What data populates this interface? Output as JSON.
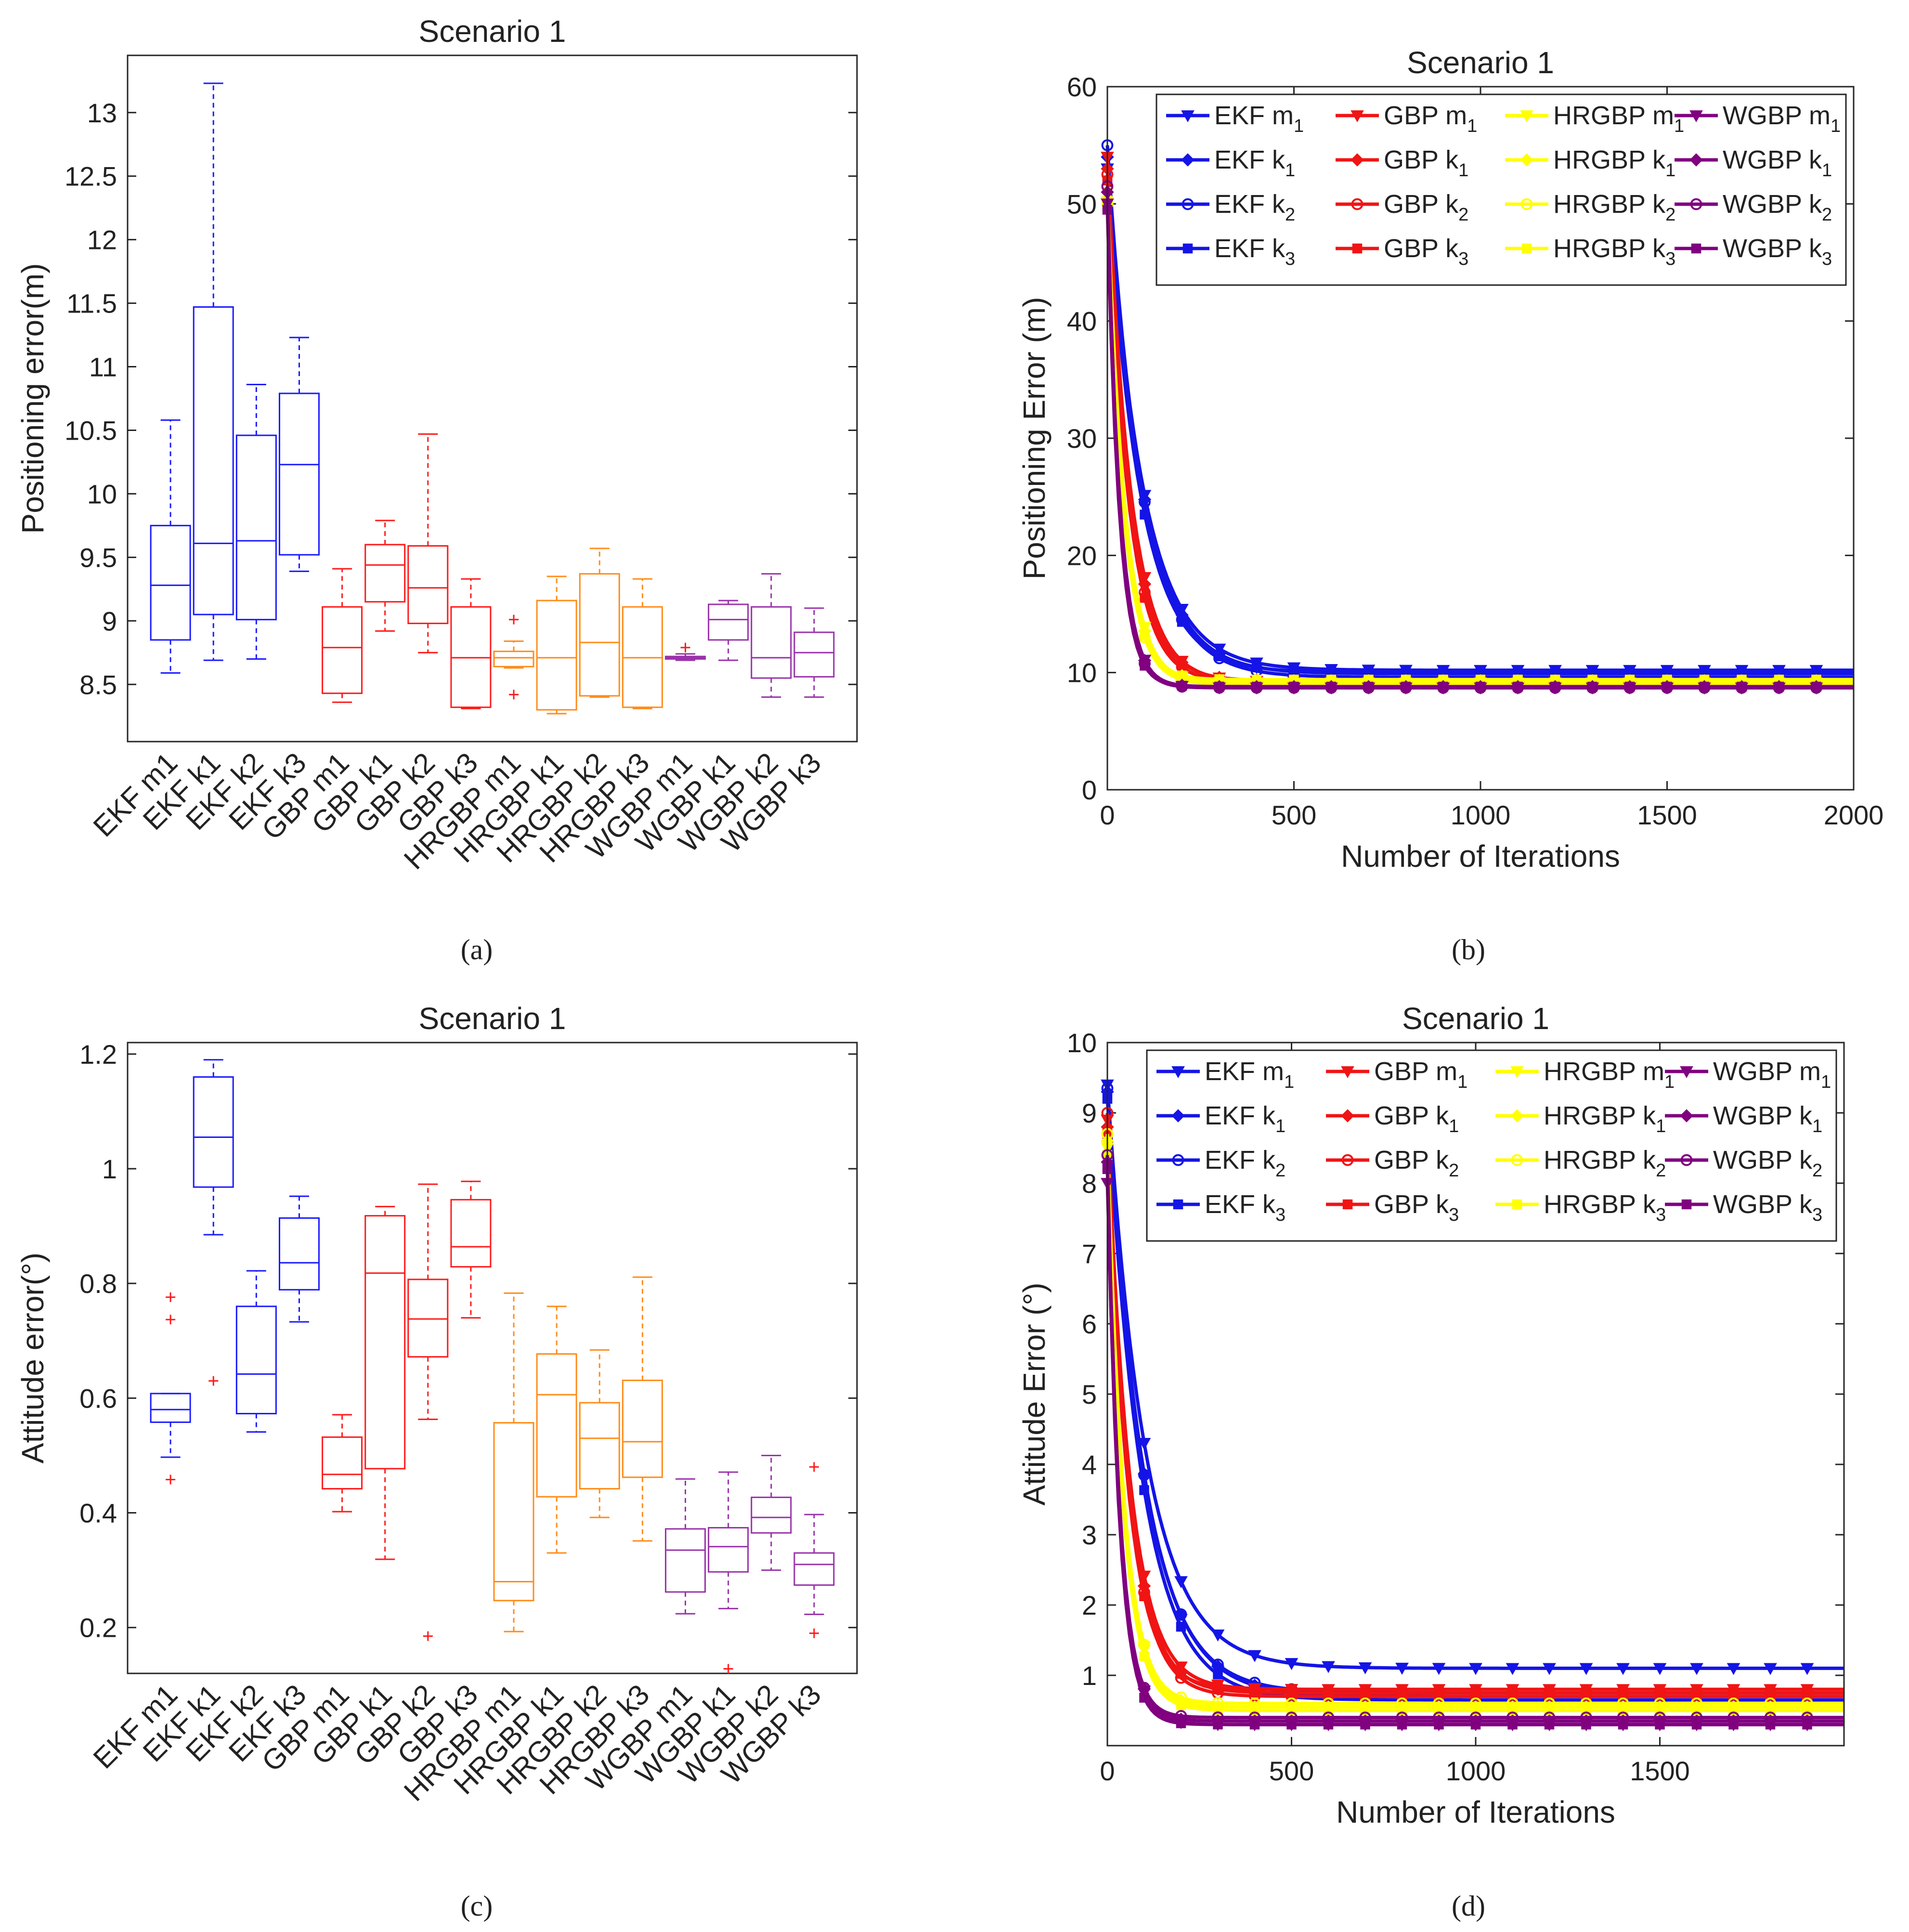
{
  "captions": [
    "(a)",
    "(b)",
    "(c)",
    "(d)"
  ],
  "colors": {
    "EKF": "#1a1aff",
    "GBP": "#ff1a1a",
    "HRGBP": "#ff8c1a",
    "WGBP": "#9933aa",
    "line_EKF": "#1414e6",
    "line_GBP": "#f01414",
    "line_HRGBP": "#ffff00",
    "line_WGBP": "#800080"
  },
  "chart_data": [
    {
      "type": "box",
      "title": "Scenario 1",
      "xlabel": "",
      "ylabel": "Positioning error(m)",
      "ylim": [
        8.05,
        13.45
      ],
      "yticks": [
        8.5,
        9,
        9.5,
        10,
        10.5,
        11,
        11.5,
        12,
        12.5,
        13
      ],
      "ytick_labels": [
        "8.5",
        "9",
        "9.5",
        "10",
        "10.5",
        "11",
        "11.5",
        "12",
        "12.5",
        "13"
      ],
      "categories": [
        "EKF m1",
        "EKF k1",
        "EKF k2",
        "EKF k3",
        "GBP m1",
        "GBP k1",
        "GBP k2",
        "GBP k3",
        "HRGBP m1",
        "HRGBP k1",
        "HRGBP k2",
        "HRGBP k3",
        "WGBP m1",
        "WGBP k1",
        "WGBP k2",
        "WGBP k3"
      ],
      "groups": [
        "EKF",
        "EKF",
        "EKF",
        "EKF",
        "GBP",
        "GBP",
        "GBP",
        "GBP",
        "HRGBP",
        "HRGBP",
        "HRGBP",
        "HRGBP",
        "WGBP",
        "WGBP",
        "WGBP",
        "WGBP"
      ],
      "boxes": [
        {
          "min": 8.59,
          "q1": 8.85,
          "median": 9.28,
          "q3": 9.75,
          "max": 10.58,
          "outliers": []
        },
        {
          "min": 8.69,
          "q1": 9.05,
          "median": 9.61,
          "q3": 11.47,
          "max": 13.23,
          "outliers": []
        },
        {
          "min": 8.7,
          "q1": 9.01,
          "median": 9.63,
          "q3": 10.46,
          "max": 10.86,
          "outliers": []
        },
        {
          "min": 9.39,
          "q1": 9.52,
          "median": 10.23,
          "q3": 10.79,
          "max": 11.23,
          "outliers": []
        },
        {
          "min": 8.36,
          "q1": 8.43,
          "median": 8.79,
          "q3": 9.11,
          "max": 9.41,
          "outliers": []
        },
        {
          "min": 8.92,
          "q1": 9.15,
          "median": 9.44,
          "q3": 9.6,
          "max": 9.79,
          "outliers": []
        },
        {
          "min": 8.75,
          "q1": 8.98,
          "median": 9.26,
          "q3": 9.59,
          "max": 10.47,
          "outliers": []
        },
        {
          "min": 8.31,
          "q1": 8.32,
          "median": 8.71,
          "q3": 9.11,
          "max": 9.33,
          "outliers": []
        },
        {
          "min": 8.63,
          "q1": 8.64,
          "median": 8.71,
          "q3": 8.76,
          "max": 8.84,
          "outliers": [
            9.01,
            8.42
          ]
        },
        {
          "min": 8.27,
          "q1": 8.3,
          "median": 8.71,
          "q3": 9.16,
          "max": 9.35,
          "outliers": []
        },
        {
          "min": 8.4,
          "q1": 8.41,
          "median": 8.83,
          "q3": 9.37,
          "max": 9.57,
          "outliers": []
        },
        {
          "min": 8.31,
          "q1": 8.32,
          "median": 8.71,
          "q3": 9.11,
          "max": 9.33,
          "outliers": []
        },
        {
          "min": 8.69,
          "q1": 8.7,
          "median": 8.71,
          "q3": 8.72,
          "max": 8.74,
          "outliers": [
            8.79
          ]
        },
        {
          "min": 8.69,
          "q1": 8.85,
          "median": 9.01,
          "q3": 9.13,
          "max": 9.16,
          "outliers": []
        },
        {
          "min": 8.4,
          "q1": 8.55,
          "median": 8.71,
          "q3": 9.11,
          "max": 9.37,
          "outliers": []
        },
        {
          "min": 8.4,
          "q1": 8.56,
          "median": 8.75,
          "q3": 8.91,
          "max": 9.1,
          "outliers": []
        }
      ]
    },
    {
      "type": "line",
      "title": "Scenario 1",
      "xlabel": "Number of Iterations",
      "ylabel": "Positioning Error (m)",
      "xlim": [
        0,
        2000
      ],
      "ylim": [
        0,
        60
      ],
      "xticks": [
        0,
        500,
        1000,
        1500,
        2000
      ],
      "xtick_labels": [
        "0",
        "500",
        "1000",
        "1500",
        "2000"
      ],
      "yticks": [
        0,
        10,
        20,
        30,
        40,
        50,
        60
      ],
      "ytick_labels": [
        "0",
        "10",
        "20",
        "30",
        "40",
        "50",
        "60"
      ],
      "decay_tau": [
        95,
        92,
        90,
        88,
        62,
        60,
        58,
        56,
        46,
        44,
        43,
        42,
        35,
        34,
        33,
        32
      ],
      "marker_step": 100,
      "series": [
        {
          "name": "EKF m1",
          "legend_main": "EKF m",
          "legend_sub": "1",
          "group": "EKF",
          "marker": "triangle-down",
          "start": 53.0,
          "final": 10.2
        },
        {
          "name": "EKF k1",
          "legend_main": "EKF k",
          "legend_sub": "1",
          "group": "EKF",
          "marker": "diamond",
          "start": 54.0,
          "final": 9.9
        },
        {
          "name": "EKF k2",
          "legend_main": "EKF k",
          "legend_sub": "2",
          "group": "EKF",
          "marker": "circle",
          "start": 55.0,
          "final": 9.6
        },
        {
          "name": "EKF k3",
          "legend_main": "EKF k",
          "legend_sub": "3",
          "group": "EKF",
          "marker": "square",
          "start": 52.0,
          "final": 10.0
        },
        {
          "name": "GBP m1",
          "legend_main": "GBP m",
          "legend_sub": "1",
          "group": "GBP",
          "marker": "triangle-down",
          "start": 54.0,
          "final": 9.2
        },
        {
          "name": "GBP k1",
          "legend_main": "GBP k",
          "legend_sub": "1",
          "group": "GBP",
          "marker": "diamond",
          "start": 53.0,
          "final": 9.3
        },
        {
          "name": "GBP k2",
          "legend_main": "GBP k",
          "legend_sub": "2",
          "group": "GBP",
          "marker": "circle",
          "start": 52.5,
          "final": 9.1
        },
        {
          "name": "GBP k3",
          "legend_main": "GBP k",
          "legend_sub": "3",
          "group": "GBP",
          "marker": "square",
          "start": 52.0,
          "final": 9.2
        },
        {
          "name": "HRGBP m1",
          "legend_main": "HRGBP m",
          "legend_sub": "1",
          "group": "HRGBP",
          "marker": "triangle-down",
          "start": 51.0,
          "final": 9.1
        },
        {
          "name": "HRGBP k1",
          "legend_main": "HRGBP k",
          "legend_sub": "1",
          "group": "HRGBP",
          "marker": "diamond",
          "start": 50.5,
          "final": 9.3
        },
        {
          "name": "HRGBP k2",
          "legend_main": "HRGBP k",
          "legend_sub": "2",
          "group": "HRGBP",
          "marker": "circle",
          "start": 50.0,
          "final": 9.0
        },
        {
          "name": "HRGBP k3",
          "legend_main": "HRGBP k",
          "legend_sub": "3",
          "group": "HRGBP",
          "marker": "square",
          "start": 50.0,
          "final": 9.4
        },
        {
          "name": "WGBP m1",
          "legend_main": "WGBP m",
          "legend_sub": "1",
          "group": "WGBP",
          "marker": "triangle-down",
          "start": 50.0,
          "final": 8.7
        },
        {
          "name": "WGBP k1",
          "legend_main": "WGBP k",
          "legend_sub": "1",
          "group": "WGBP",
          "marker": "diamond",
          "start": 51.0,
          "final": 8.8
        },
        {
          "name": "WGBP k2",
          "legend_main": "WGBP k",
          "legend_sub": "2",
          "group": "WGBP",
          "marker": "circle",
          "start": 51.5,
          "final": 8.7
        },
        {
          "name": "WGBP k3",
          "legend_main": "WGBP k",
          "legend_sub": "3",
          "group": "WGBP",
          "marker": "square",
          "start": 49.5,
          "final": 8.8
        }
      ]
    },
    {
      "type": "box",
      "title": "Scenario 1",
      "xlabel": "",
      "ylabel": "Attitude error(°)",
      "ylim": [
        0.12,
        1.22
      ],
      "yticks": [
        0.2,
        0.4,
        0.6,
        0.8,
        1.0,
        1.2
      ],
      "ytick_labels": [
        "0.2",
        "0.4",
        "0.6",
        "0.8",
        "1",
        "1.2"
      ],
      "categories": [
        "EKF m1",
        "EKF k1",
        "EKF k2",
        "EKF k3",
        "GBP m1",
        "GBP k1",
        "GBP k2",
        "GBP k3",
        "HRGBP m1",
        "HRGBP k1",
        "HRGBP k2",
        "HRGBP k3",
        "WGBP m1",
        "WGBP k1",
        "WGBP k2",
        "WGBP k3"
      ],
      "groups": [
        "EKF",
        "EKF",
        "EKF",
        "EKF",
        "GBP",
        "GBP",
        "GBP",
        "GBP",
        "HRGBP",
        "HRGBP",
        "HRGBP",
        "HRGBP",
        "WGBP",
        "WGBP",
        "WGBP",
        "WGBP"
      ],
      "boxes": [
        {
          "min": 0.497,
          "q1": 0.558,
          "median": 0.58,
          "q3": 0.608,
          "max": 0.608,
          "outliers": [
            0.776,
            0.737,
            0.458
          ]
        },
        {
          "min": 0.885,
          "q1": 0.968,
          "median": 1.055,
          "q3": 1.16,
          "max": 1.19,
          "outliers": [
            0.63
          ]
        },
        {
          "min": 0.541,
          "q1": 0.573,
          "median": 0.642,
          "q3": 0.76,
          "max": 0.822,
          "outliers": []
        },
        {
          "min": 0.733,
          "q1": 0.789,
          "median": 0.836,
          "q3": 0.914,
          "max": 0.952,
          "outliers": []
        },
        {
          "min": 0.402,
          "q1": 0.442,
          "median": 0.467,
          "q3": 0.532,
          "max": 0.571,
          "outliers": []
        },
        {
          "min": 0.319,
          "q1": 0.477,
          "median": 0.818,
          "q3": 0.918,
          "max": 0.934,
          "outliers": []
        },
        {
          "min": 0.563,
          "q1": 0.672,
          "median": 0.738,
          "q3": 0.807,
          "max": 0.973,
          "outliers": [
            0.185
          ]
        },
        {
          "min": 0.74,
          "q1": 0.829,
          "median": 0.864,
          "q3": 0.946,
          "max": 0.978,
          "outliers": []
        },
        {
          "min": 0.193,
          "q1": 0.247,
          "median": 0.28,
          "q3": 0.557,
          "max": 0.783,
          "outliers": []
        },
        {
          "min": 0.33,
          "q1": 0.428,
          "median": 0.606,
          "q3": 0.677,
          "max": 0.76,
          "outliers": []
        },
        {
          "min": 0.392,
          "q1": 0.442,
          "median": 0.53,
          "q3": 0.592,
          "max": 0.684,
          "outliers": []
        },
        {
          "min": 0.351,
          "q1": 0.462,
          "median": 0.524,
          "q3": 0.631,
          "max": 0.811,
          "outliers": []
        },
        {
          "min": 0.224,
          "q1": 0.262,
          "median": 0.335,
          "q3": 0.372,
          "max": 0.459,
          "outliers": []
        },
        {
          "min": 0.233,
          "q1": 0.297,
          "median": 0.341,
          "q3": 0.374,
          "max": 0.471,
          "outliers": [
            0.128
          ]
        },
        {
          "min": 0.3,
          "q1": 0.365,
          "median": 0.392,
          "q3": 0.427,
          "max": 0.5,
          "outliers": []
        },
        {
          "min": 0.223,
          "q1": 0.274,
          "median": 0.31,
          "q3": 0.33,
          "max": 0.397,
          "outliers": [
            0.48,
            0.19
          ]
        }
      ]
    },
    {
      "type": "line",
      "title": "Scenario 1",
      "xlabel": "Number of Iterations",
      "ylabel": "Attitude Error (°)",
      "xlim": [
        0,
        2000
      ],
      "ylim": [
        0,
        10
      ],
      "xticks": [
        0,
        500,
        1000,
        1500
      ],
      "xtick_labels": [
        "0",
        "500",
        "1000",
        "1500"
      ],
      "yticks": [
        1,
        2,
        3,
        4,
        5,
        6,
        7,
        8,
        9,
        10
      ],
      "ytick_labels": [
        "1",
        "2",
        "3",
        "4",
        "5",
        "6",
        "7",
        "8",
        "9",
        "10"
      ],
      "decay_tau": [
        105,
        100,
        98,
        95,
        62,
        60,
        58,
        56,
        46,
        45,
        44,
        43,
        36,
        35,
        34,
        33
      ],
      "marker_step": 100,
      "series": [
        {
          "name": "EKF m1",
          "legend_main": "EKF m",
          "legend_sub": "1",
          "group": "EKF",
          "marker": "triangle-down",
          "start": 9.4,
          "final": 1.1
        },
        {
          "name": "EKF k1",
          "legend_main": "EKF k",
          "legend_sub": "1",
          "group": "EKF",
          "marker": "diamond",
          "start": 9.3,
          "final": 0.7
        },
        {
          "name": "EKF k2",
          "legend_main": "EKF k",
          "legend_sub": "2",
          "group": "EKF",
          "marker": "circle",
          "start": 9.35,
          "final": 0.75
        },
        {
          "name": "EKF k3",
          "legend_main": "EKF k",
          "legend_sub": "3",
          "group": "EKF",
          "marker": "square",
          "start": 9.2,
          "final": 0.65
        },
        {
          "name": "GBP m1",
          "legend_main": "GBP m",
          "legend_sub": "1",
          "group": "GBP",
          "marker": "triangle-down",
          "start": 8.9,
          "final": 0.8
        },
        {
          "name": "GBP k1",
          "legend_main": "GBP k",
          "legend_sub": "1",
          "group": "GBP",
          "marker": "diamond",
          "start": 8.8,
          "final": 0.75
        },
        {
          "name": "GBP k2",
          "legend_main": "GBP k",
          "legend_sub": "2",
          "group": "GBP",
          "marker": "circle",
          "start": 9.0,
          "final": 0.7
        },
        {
          "name": "GBP k3",
          "legend_main": "GBP k",
          "legend_sub": "3",
          "group": "GBP",
          "marker": "square",
          "start": 8.7,
          "final": 0.8
        },
        {
          "name": "HRGBP m1",
          "legend_main": "HRGBP m",
          "legend_sub": "1",
          "group": "HRGBP",
          "marker": "triangle-down",
          "start": 8.5,
          "final": 0.5
        },
        {
          "name": "HRGBP k1",
          "legend_main": "HRGBP k",
          "legend_sub": "1",
          "group": "HRGBP",
          "marker": "diamond",
          "start": 8.6,
          "final": 0.55
        },
        {
          "name": "HRGBP k2",
          "legend_main": "HRGBP k",
          "legend_sub": "2",
          "group": "HRGBP",
          "marker": "circle",
          "start": 8.7,
          "final": 0.6
        },
        {
          "name": "HRGBP k3",
          "legend_main": "HRGBP k",
          "legend_sub": "3",
          "group": "HRGBP",
          "marker": "square",
          "start": 8.4,
          "final": 0.5
        },
        {
          "name": "WGBP m1",
          "legend_main": "WGBP m",
          "legend_sub": "1",
          "group": "WGBP",
          "marker": "triangle-down",
          "start": 8.0,
          "final": 0.3
        },
        {
          "name": "WGBP k1",
          "legend_main": "WGBP k",
          "legend_sub": "1",
          "group": "WGBP",
          "marker": "diamond",
          "start": 8.3,
          "final": 0.35
        },
        {
          "name": "WGBP k2",
          "legend_main": "WGBP k",
          "legend_sub": "2",
          "group": "WGBP",
          "marker": "circle",
          "start": 8.4,
          "final": 0.4
        },
        {
          "name": "WGBP k3",
          "legend_main": "WGBP k",
          "legend_sub": "3",
          "group": "WGBP",
          "marker": "square",
          "start": 8.2,
          "final": 0.3
        }
      ]
    }
  ]
}
